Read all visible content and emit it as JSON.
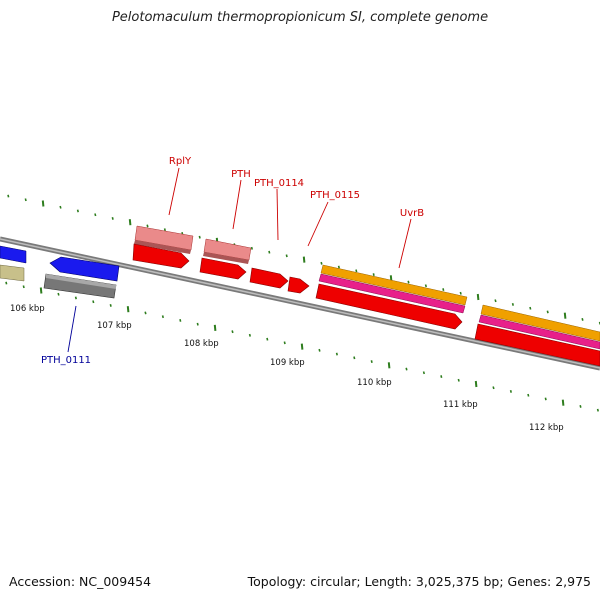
{
  "title": "Pelotomaculum thermopropionicum SI, complete genome",
  "footer": {
    "accession": "Accession: NC_009454",
    "summary": "Topology: circular; Length: 3,025,375 bp; Genes: 2,975"
  },
  "scale_labels": [
    "106 kbp",
    "107 kbp",
    "108 kbp",
    "109 kbp",
    "110 kbp",
    "111 kbp",
    "112 kbp"
  ],
  "gene_labels": [
    {
      "text": "RplY",
      "color": "#cc0000"
    },
    {
      "text": "PTH",
      "color": "#cc0000"
    },
    {
      "text": "PTH_0114",
      "color": "#cc0000"
    },
    {
      "text": "PTH_0115",
      "color": "#cc0000"
    },
    {
      "text": "UvrB",
      "color": "#cc0000"
    },
    {
      "text": "PTH_0111",
      "color": "#000099"
    }
  ],
  "colors": {
    "backbone": "#888888",
    "tick": "#2e7d1e",
    "red": "#ee0000",
    "pink": "#ea8a8a",
    "blue": "#1a1aee",
    "gray": "#777777",
    "olive": "#c8c08a",
    "orange": "#f0a000",
    "magenta": "#e8208a"
  }
}
